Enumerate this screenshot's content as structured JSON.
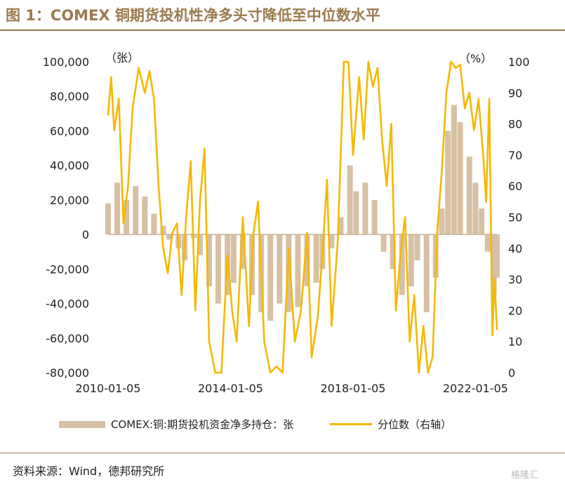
{
  "title": "图 1：COMEX 铜期货投机性净多头寸降低至中位数水平",
  "source": "资料来源：Wind，德邦研究所",
  "watermark": "格隆汇",
  "colors": {
    "bar": "#d7c0a4",
    "line": "#f5b800",
    "accent": "#9c7a50"
  },
  "chart_data": {
    "type": "bar+line",
    "y_left": {
      "unit_label": "（张）",
      "range": [
        -80000,
        100000
      ],
      "ticks": [
        "100,000",
        "80,000",
        "60,000",
        "40,000",
        "20,000",
        "0",
        "-20,000",
        "-40,000",
        "-60,000",
        "-80,000"
      ]
    },
    "y_right": {
      "unit_label": "（%）",
      "range": [
        0,
        100
      ],
      "ticks": [
        "100",
        "90",
        "80",
        "70",
        "60",
        "50",
        "40",
        "30",
        "20",
        "10",
        "0"
      ]
    },
    "x_ticks": [
      "2010-01-05",
      "2014-01-05",
      "2018-01-05",
      "2022-01-05"
    ],
    "x_range": [
      2010.0,
      2022.7
    ],
    "legend": {
      "bar": "COMEX:铜:期货投机资金净多持仓：张",
      "line": "分位数（右轴）"
    },
    "series": [
      {
        "name": "COMEX:铜:期货投机资金净多持仓：张",
        "axis": "left",
        "kind": "bar",
        "points": [
          [
            2010.0,
            18000
          ],
          [
            2010.3,
            30000
          ],
          [
            2010.6,
            20000
          ],
          [
            2010.9,
            28000
          ],
          [
            2011.2,
            22000
          ],
          [
            2011.5,
            12000
          ],
          [
            2011.8,
            5000
          ],
          [
            2012.0,
            -3000
          ],
          [
            2012.3,
            -8000
          ],
          [
            2012.5,
            -15000
          ],
          [
            2012.8,
            -2000
          ],
          [
            2013.0,
            -12000
          ],
          [
            2013.3,
            -30000
          ],
          [
            2013.6,
            -40000
          ],
          [
            2013.9,
            -35000
          ],
          [
            2014.1,
            -28000
          ],
          [
            2014.4,
            -20000
          ],
          [
            2014.7,
            -35000
          ],
          [
            2015.0,
            -45000
          ],
          [
            2015.3,
            -50000
          ],
          [
            2015.6,
            -40000
          ],
          [
            2015.9,
            -45000
          ],
          [
            2016.2,
            -42000
          ],
          [
            2016.5,
            -30000
          ],
          [
            2016.8,
            -28000
          ],
          [
            2017.0,
            -20000
          ],
          [
            2017.3,
            -8000
          ],
          [
            2017.6,
            10000
          ],
          [
            2017.9,
            40000
          ],
          [
            2018.1,
            25000
          ],
          [
            2018.4,
            30000
          ],
          [
            2018.7,
            20000
          ],
          [
            2019.0,
            -10000
          ],
          [
            2019.3,
            -20000
          ],
          [
            2019.6,
            -35000
          ],
          [
            2019.9,
            -30000
          ],
          [
            2020.1,
            -15000
          ],
          [
            2020.4,
            -45000
          ],
          [
            2020.7,
            -25000
          ],
          [
            2020.9,
            15000
          ],
          [
            2021.1,
            60000
          ],
          [
            2021.3,
            75000
          ],
          [
            2021.5,
            65000
          ],
          [
            2021.8,
            45000
          ],
          [
            2022.0,
            30000
          ],
          [
            2022.2,
            15000
          ],
          [
            2022.4,
            -10000
          ],
          [
            2022.6,
            -35000
          ],
          [
            2022.7,
            -25000
          ]
        ]
      },
      {
        "name": "分位数（右轴）",
        "axis": "right",
        "kind": "line",
        "points": [
          [
            2010.0,
            83
          ],
          [
            2010.1,
            95
          ],
          [
            2010.2,
            78
          ],
          [
            2010.35,
            88
          ],
          [
            2010.5,
            48
          ],
          [
            2010.65,
            60
          ],
          [
            2010.8,
            85
          ],
          [
            2011.0,
            98
          ],
          [
            2011.2,
            90
          ],
          [
            2011.35,
            97
          ],
          [
            2011.5,
            88
          ],
          [
            2011.65,
            60
          ],
          [
            2011.8,
            40
          ],
          [
            2011.95,
            32
          ],
          [
            2012.1,
            45
          ],
          [
            2012.25,
            48
          ],
          [
            2012.4,
            25
          ],
          [
            2012.55,
            50
          ],
          [
            2012.7,
            68
          ],
          [
            2012.85,
            20
          ],
          [
            2013.0,
            55
          ],
          [
            2013.15,
            72
          ],
          [
            2013.3,
            10
          ],
          [
            2013.5,
            0
          ],
          [
            2013.7,
            0
          ],
          [
            2013.9,
            38
          ],
          [
            2014.05,
            20
          ],
          [
            2014.2,
            10
          ],
          [
            2014.4,
            50
          ],
          [
            2014.6,
            15
          ],
          [
            2014.75,
            45
          ],
          [
            2014.9,
            55
          ],
          [
            2015.1,
            10
          ],
          [
            2015.3,
            0
          ],
          [
            2015.5,
            2
          ],
          [
            2015.7,
            0
          ],
          [
            2015.9,
            40
          ],
          [
            2016.1,
            10
          ],
          [
            2016.3,
            20
          ],
          [
            2016.5,
            45
          ],
          [
            2016.65,
            5
          ],
          [
            2016.85,
            18
          ],
          [
            2017.0,
            38
          ],
          [
            2017.15,
            62
          ],
          [
            2017.3,
            15
          ],
          [
            2017.5,
            42
          ],
          [
            2017.7,
            100
          ],
          [
            2017.85,
            100
          ],
          [
            2018.0,
            70
          ],
          [
            2018.2,
            95
          ],
          [
            2018.35,
            75
          ],
          [
            2018.5,
            100
          ],
          [
            2018.65,
            92
          ],
          [
            2018.8,
            98
          ],
          [
            2018.95,
            75
          ],
          [
            2019.1,
            60
          ],
          [
            2019.25,
            80
          ],
          [
            2019.4,
            20
          ],
          [
            2019.55,
            38
          ],
          [
            2019.7,
            50
          ],
          [
            2019.85,
            10
          ],
          [
            2020.0,
            25
          ],
          [
            2020.15,
            0
          ],
          [
            2020.3,
            15
          ],
          [
            2020.45,
            0
          ],
          [
            2020.6,
            5
          ],
          [
            2020.75,
            45
          ],
          [
            2020.9,
            65
          ],
          [
            2021.05,
            90
          ],
          [
            2021.2,
            100
          ],
          [
            2021.35,
            98
          ],
          [
            2021.5,
            99
          ],
          [
            2021.65,
            85
          ],
          [
            2021.8,
            90
          ],
          [
            2021.95,
            78
          ],
          [
            2022.1,
            88
          ],
          [
            2022.25,
            70
          ],
          [
            2022.35,
            55
          ],
          [
            2022.45,
            88
          ],
          [
            2022.55,
            12
          ],
          [
            2022.62,
            30
          ],
          [
            2022.7,
            14
          ]
        ]
      }
    ]
  }
}
